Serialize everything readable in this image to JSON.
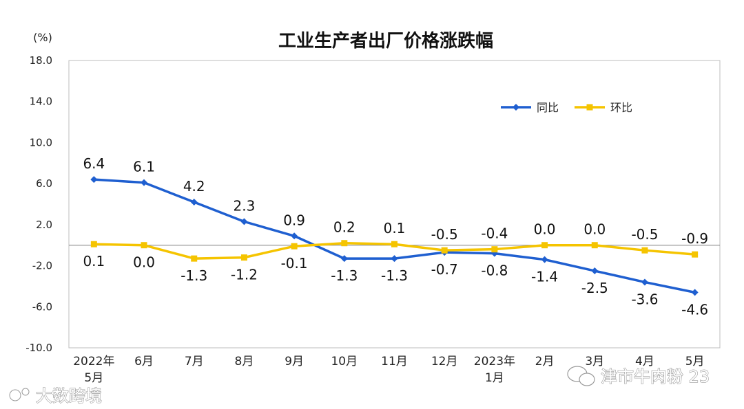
{
  "chart_data": {
    "type": "line",
    "title": "工业生产者出厂价格涨跌幅",
    "unit": "(%)",
    "ylim": [
      -10,
      18
    ],
    "yticks": [
      18,
      14,
      10,
      6,
      2,
      -2,
      -6,
      -10
    ],
    "ytick_labels": [
      "18.0",
      "14.0",
      "10.0",
      "6.0",
      "2.0",
      "-2.0",
      "-6.0",
      "-10.0"
    ],
    "categories": [
      [
        "2022年",
        "5月"
      ],
      [
        "6月"
      ],
      [
        "7月"
      ],
      [
        "8月"
      ],
      [
        "9月"
      ],
      [
        "10月"
      ],
      [
        "11月"
      ],
      [
        "12月"
      ],
      [
        "2023年",
        "1月"
      ],
      [
        "2月"
      ],
      [
        "3月"
      ],
      [
        "4月"
      ],
      [
        "5月"
      ]
    ],
    "series": [
      {
        "name": "同比",
        "color": "#1f5fd0",
        "values": [
          6.4,
          6.1,
          4.2,
          2.3,
          0.9,
          -1.3,
          -1.3,
          -0.7,
          -0.8,
          -1.4,
          -2.5,
          -3.6,
          -4.6
        ],
        "labels": [
          "6.4",
          "6.1",
          "4.2",
          "2.3",
          "0.9",
          "-1.3",
          "-1.3",
          "-0.7",
          "-0.8",
          "-1.4",
          "-2.5",
          "-3.6",
          "-4.6"
        ]
      },
      {
        "name": "环比",
        "color": "#f5c400",
        "values": [
          0.1,
          0.0,
          -1.3,
          -1.2,
          -0.1,
          0.2,
          0.1,
          -0.5,
          -0.4,
          0.0,
          0.0,
          -0.5,
          -0.9
        ],
        "labels": [
          "0.1",
          "0.0",
          "-1.3",
          "-1.2",
          "-0.1",
          "0.2",
          "0.1",
          "-0.5",
          "-0.4",
          "0.0",
          "0.0",
          "-0.5",
          "-0.9"
        ]
      }
    ],
    "grid": false,
    "legend": "top-right"
  },
  "watermarks": {
    "left": "大数跨境",
    "right": "津市牛肉粉 23"
  }
}
